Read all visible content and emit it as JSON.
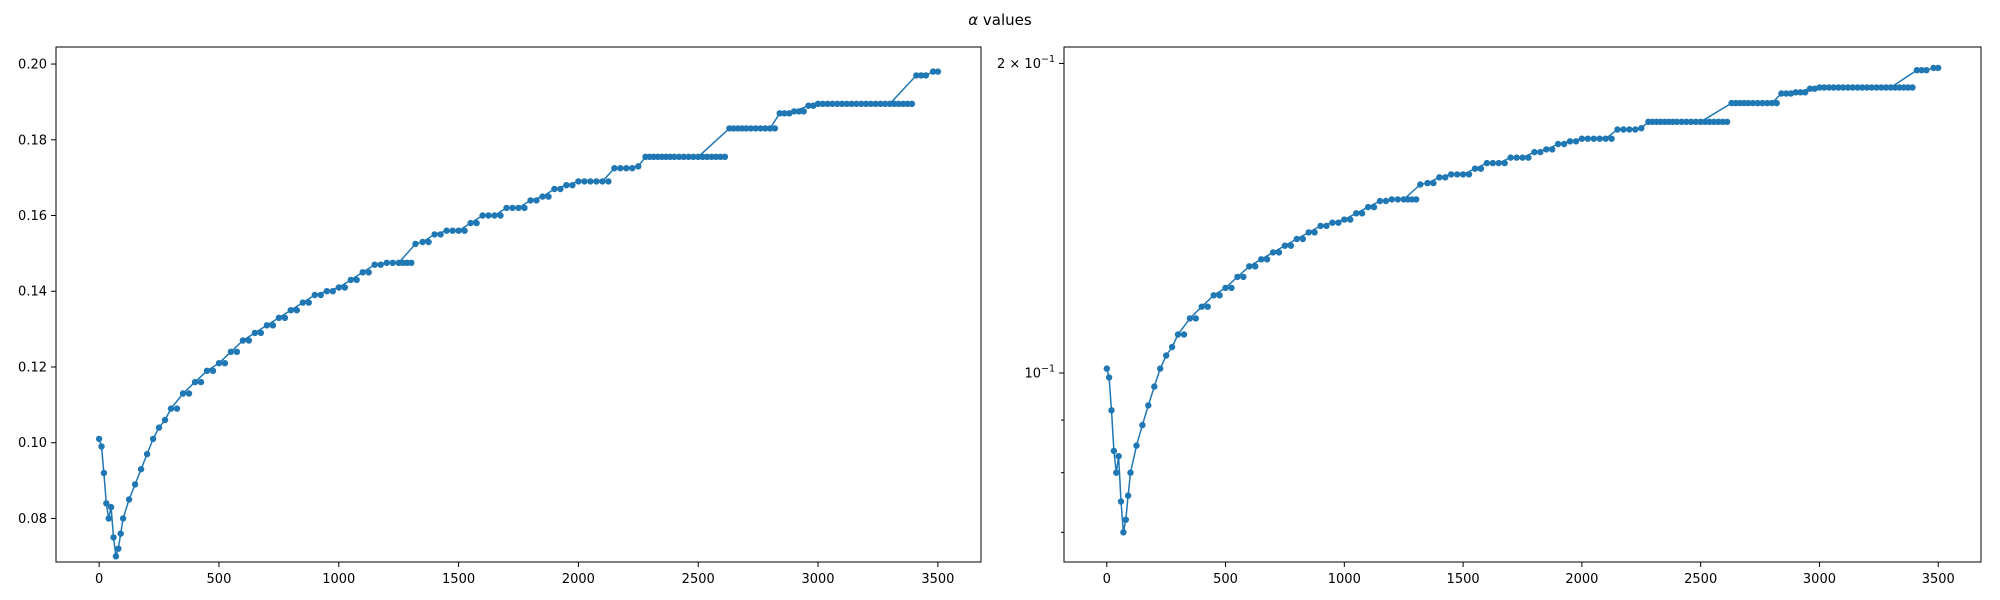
{
  "figure": {
    "title_symbol": "α",
    "title_text": " values"
  },
  "chart_data": [
    {
      "type": "line",
      "markers": true,
      "color": "#1f77b4",
      "title": "",
      "xlabel": "",
      "ylabel": "",
      "xlim": [
        -180,
        3680
      ],
      "ylim": [
        0.0685,
        0.2045
      ],
      "yscale": "linear",
      "grid": false,
      "xticks": [
        0,
        500,
        1000,
        1500,
        2000,
        2500,
        3000,
        3500
      ],
      "xtick_labels": [
        "0",
        "500",
        "1000",
        "1500",
        "2000",
        "2500",
        "3000",
        "3500"
      ],
      "yticks": [
        0.08,
        0.1,
        0.12,
        0.14,
        0.16,
        0.18,
        0.2
      ],
      "ytick_labels": [
        "0.08",
        "0.10",
        "0.12",
        "0.14",
        "0.16",
        "0.18",
        "0.20"
      ],
      "series": [
        {
          "x": [
            0,
            10,
            20,
            30,
            40,
            50,
            60,
            70,
            80,
            90,
            100,
            125,
            150,
            175,
            200,
            225,
            250,
            275,
            300,
            350,
            400,
            450,
            500,
            550,
            600,
            650,
            700,
            750,
            800,
            850,
            900,
            950,
            1000,
            1050,
            1100,
            1150,
            1200,
            1250,
            1320,
            1350,
            1400,
            1450,
            1500,
            1550,
            1600,
            1650,
            1700,
            1750,
            1800,
            1850,
            1900,
            1950,
            2000,
            2050,
            2100,
            2150,
            2200,
            2250,
            2280,
            2400,
            2500,
            2630,
            2700,
            2800,
            2840,
            2900,
            2960,
            3000,
            3100,
            3200,
            3300,
            3410,
            3450,
            3480,
            3500
          ],
          "y": [
            0.101,
            0.099,
            0.092,
            0.084,
            0.08,
            0.083,
            0.075,
            0.07,
            0.072,
            0.076,
            0.08,
            0.085,
            0.089,
            0.093,
            0.097,
            0.101,
            0.104,
            0.106,
            0.109,
            0.113,
            0.116,
            0.119,
            0.121,
            0.124,
            0.127,
            0.129,
            0.131,
            0.133,
            0.135,
            0.137,
            0.139,
            0.14,
            0.141,
            0.143,
            0.145,
            0.147,
            0.1475,
            0.1475,
            0.1525,
            0.153,
            0.155,
            0.156,
            0.156,
            0.158,
            0.16,
            0.16,
            0.162,
            0.162,
            0.164,
            0.165,
            0.167,
            0.168,
            0.169,
            0.169,
            0.169,
            0.1725,
            0.1725,
            0.173,
            0.1755,
            0.1755,
            0.1755,
            0.183,
            0.183,
            0.183,
            0.187,
            0.1875,
            0.189,
            0.1895,
            0.1895,
            0.1895,
            0.1895,
            0.197,
            0.197,
            0.198,
            0.198
          ]
        }
      ]
    },
    {
      "type": "line",
      "markers": true,
      "color": "#1f77b4",
      "title": "",
      "xlabel": "",
      "ylabel": "",
      "xlim": [
        -180,
        3680
      ],
      "ylim": [
        0.0655,
        0.2075
      ],
      "yscale": "log",
      "grid": false,
      "xticks": [
        0,
        500,
        1000,
        1500,
        2000,
        2500,
        3000,
        3500
      ],
      "xtick_labels": [
        "0",
        "500",
        "1000",
        "1500",
        "2000",
        "2500",
        "3000",
        "3500"
      ],
      "yticks_major": [
        0.1,
        0.2
      ],
      "ytick_labels": [
        [
          "10",
          "−1"
        ],
        [
          "2 × 10",
          "−1"
        ]
      ],
      "yticks_minor": [
        0.07,
        0.08,
        0.09
      ],
      "series": [
        {
          "x": [
            0,
            10,
            20,
            30,
            40,
            50,
            60,
            70,
            80,
            90,
            100,
            125,
            150,
            175,
            200,
            225,
            250,
            275,
            300,
            350,
            400,
            450,
            500,
            550,
            600,
            650,
            700,
            750,
            800,
            850,
            900,
            950,
            1000,
            1050,
            1100,
            1150,
            1200,
            1250,
            1320,
            1350,
            1400,
            1450,
            1500,
            1550,
            1600,
            1650,
            1700,
            1750,
            1800,
            1850,
            1900,
            1950,
            2000,
            2050,
            2100,
            2150,
            2200,
            2250,
            2280,
            2400,
            2500,
            2630,
            2700,
            2800,
            2840,
            2900,
            2960,
            3000,
            3100,
            3200,
            3300,
            3410,
            3450,
            3480,
            3500
          ],
          "y": [
            0.101,
            0.099,
            0.092,
            0.084,
            0.08,
            0.083,
            0.075,
            0.07,
            0.072,
            0.076,
            0.08,
            0.085,
            0.089,
            0.093,
            0.097,
            0.101,
            0.104,
            0.106,
            0.109,
            0.113,
            0.116,
            0.119,
            0.121,
            0.124,
            0.127,
            0.129,
            0.131,
            0.133,
            0.135,
            0.137,
            0.139,
            0.14,
            0.141,
            0.143,
            0.145,
            0.147,
            0.1475,
            0.1475,
            0.1525,
            0.153,
            0.155,
            0.156,
            0.156,
            0.158,
            0.16,
            0.16,
            0.162,
            0.162,
            0.164,
            0.165,
            0.167,
            0.168,
            0.169,
            0.169,
            0.169,
            0.1725,
            0.1725,
            0.173,
            0.1755,
            0.1755,
            0.1755,
            0.183,
            0.183,
            0.183,
            0.187,
            0.1875,
            0.189,
            0.1895,
            0.1895,
            0.1895,
            0.1895,
            0.197,
            0.197,
            0.198,
            0.198
          ]
        }
      ]
    }
  ]
}
